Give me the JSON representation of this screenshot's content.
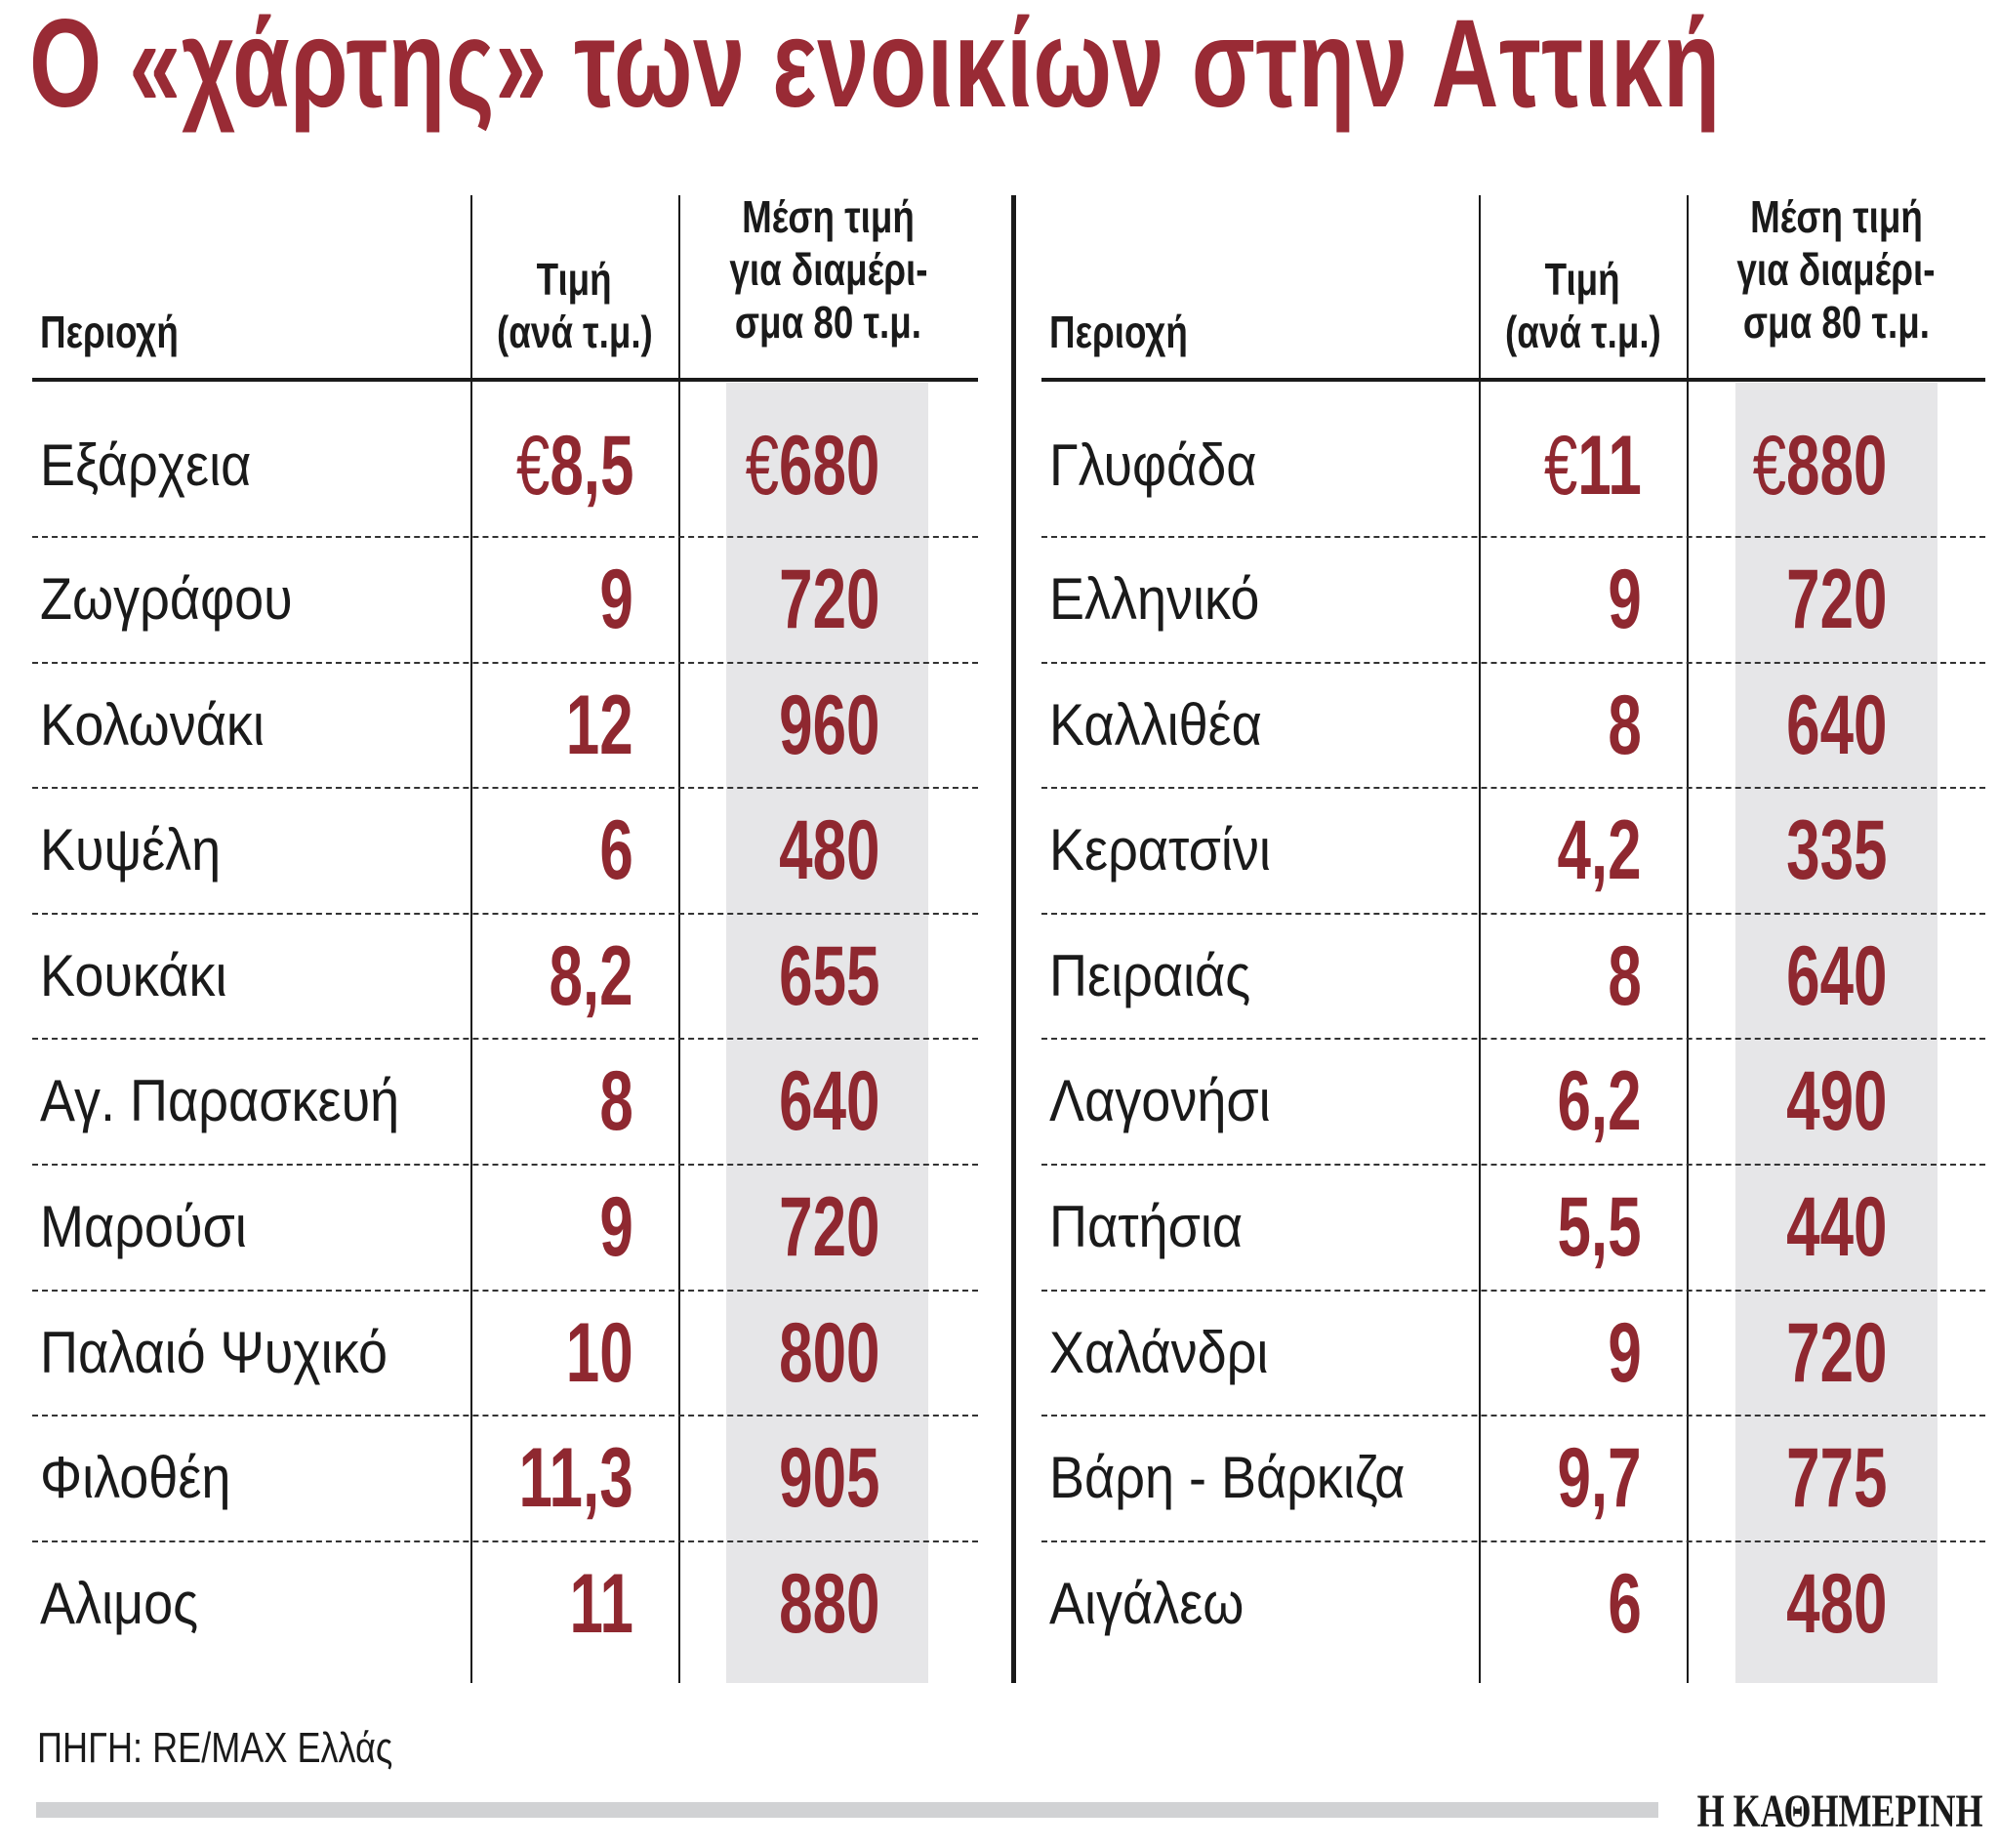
{
  "title": "Ο «χάρτης» των ενοικίων στην Αττική",
  "headers": {
    "area": "Περιοχή",
    "price_l1": "Τιμή",
    "price_l2": "(ανά τ.μ.)",
    "avg_l1": "Μέση τιμή",
    "avg_l2": "για διαμέρι-",
    "avg_l3": "σμα 80 τ.μ."
  },
  "currency": "€",
  "colors": {
    "accent": "#992b35",
    "highlight_column": "#e6e6e8"
  },
  "left_table": [
    {
      "area": "Εξάρχεια",
      "price": "8,5",
      "avg": "680",
      "euro": true
    },
    {
      "area": "Ζωγράφου",
      "price": "9",
      "avg": "720"
    },
    {
      "area": "Κολωνάκι",
      "price": "12",
      "avg": "960"
    },
    {
      "area": "Κυψέλη",
      "price": "6",
      "avg": "480"
    },
    {
      "area": "Κουκάκι",
      "price": "8,2",
      "avg": "655"
    },
    {
      "area": "Αγ. Παρασκευή",
      "price": "8",
      "avg": "640"
    },
    {
      "area": "Μαρούσι",
      "price": "9",
      "avg": "720"
    },
    {
      "area": "Παλαιό Ψυχικό",
      "price": "10",
      "avg": "800"
    },
    {
      "area": "Φιλοθέη",
      "price": "11,3",
      "avg": "905"
    },
    {
      "area": "Αλιμος",
      "price": "11",
      "avg": "880"
    }
  ],
  "right_table": [
    {
      "area": "Γλυφάδα",
      "price": "11",
      "avg": "880",
      "euro": true
    },
    {
      "area": "Ελληνικό",
      "price": "9",
      "avg": "720"
    },
    {
      "area": "Καλλιθέα",
      "price": "8",
      "avg": "640"
    },
    {
      "area": "Κερατσίνι",
      "price": "4,2",
      "avg": "335"
    },
    {
      "area": "Πειραιάς",
      "price": "8",
      "avg": "640"
    },
    {
      "area": "Λαγονήσι",
      "price": "6,2",
      "avg": "490"
    },
    {
      "area": "Πατήσια",
      "price": "5,5",
      "avg": "440"
    },
    {
      "area": "Χαλάνδρι",
      "price": "9",
      "avg": "720"
    },
    {
      "area": "Βάρη - Βάρκιζα",
      "price": "9,7",
      "avg": "775"
    },
    {
      "area": "Αιγάλεω",
      "price": "6",
      "avg": "480"
    }
  ],
  "source": "ΠΗΓΗ: RE/MAX Ελλάς",
  "logo": "Η ΚΑΘΗΜΕΡΙΝΗ"
}
